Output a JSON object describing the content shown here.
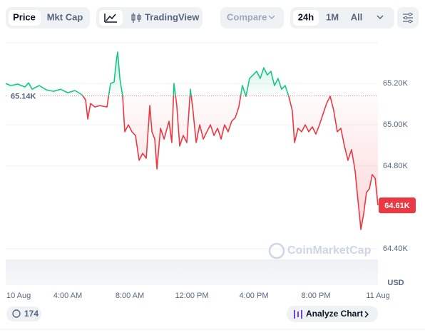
{
  "toolbar": {
    "price": "Price",
    "mkt_cap": "Mkt Cap",
    "tradingview": "TradingView",
    "compare": "Compare",
    "ranges": [
      "24h",
      "1M",
      "All"
    ]
  },
  "chart_data": {
    "type": "line",
    "x": [
      0,
      0.32,
      0.78,
      1.24,
      1.47,
      1.7,
      2.16,
      2.62,
      3.08,
      3.54,
      4.0,
      4.46,
      4.92,
      5.15,
      5.29,
      5.47,
      5.75,
      6.07,
      6.53,
      6.76,
      6.99,
      7.13,
      7.22,
      7.36,
      7.54,
      7.68,
      7.91,
      8.14,
      8.37,
      8.6,
      8.83,
      9.06,
      9.29,
      9.43,
      9.61,
      9.75,
      9.98,
      10.21,
      10.53,
      10.71,
      10.85,
      11.03,
      11.22,
      11.45,
      11.68,
      11.91,
      12.05,
      12.28,
      12.51,
      12.74,
      12.97,
      13.2,
      13.43,
      13.66,
      13.89,
      14.11,
      14.34,
      14.57,
      14.8,
      15.03,
      15.26,
      15.49,
      15.72,
      15.95,
      16.18,
      16.41,
      16.64,
      16.87,
      17.1,
      17.33,
      17.56,
      17.79,
      18.02,
      18.25,
      18.48,
      18.62,
      18.85,
      19.08,
      19.31,
      19.54,
      19.77,
      20.0,
      20.23,
      20.46,
      20.69,
      20.92,
      21.15,
      21.38,
      21.61,
      21.84,
      22.07,
      22.3,
      22.53,
      22.71,
      22.9,
      23.08,
      23.26,
      23.45,
      23.63,
      23.82,
      24.0
    ],
    "series": [
      {
        "name": "Price",
        "color_up": "#16c784",
        "color_down": "#ea3943",
        "values": [
          65200,
          65190,
          65197,
          65183,
          65203,
          65172,
          65190,
          65169,
          65162,
          65172,
          65155,
          65166,
          65145,
          65121,
          65028,
          65103,
          65086,
          65093,
          65086,
          65200,
          65207,
          65310,
          65352,
          65224,
          65138,
          64966,
          65000,
          64966,
          64948,
          64828,
          64862,
          64838,
          65093,
          64966,
          64931,
          64786,
          64983,
          64931,
          65017,
          64914,
          65200,
          65093,
          64897,
          64948,
          64914,
          65172,
          65086,
          64914,
          65000,
          64931,
          64966,
          65000,
          64948,
          64983,
          64931,
          65000,
          64966,
          65017,
          65034,
          65086,
          65190,
          65138,
          65224,
          65241,
          65259,
          65224,
          65276,
          65241,
          65259,
          65190,
          65224,
          65172,
          65190,
          65138,
          65069,
          64914,
          64983,
          64966,
          65000,
          64966,
          64990,
          64955,
          65000,
          65052,
          65103,
          65138,
          65069,
          64966,
          64983,
          64897,
          64828,
          64880,
          64776,
          64638,
          64493,
          64569,
          64672,
          64690,
          64759,
          64741,
          64610
        ]
      }
    ],
    "xlim": [
      0,
      24
    ],
    "xticks": [
      {
        "value": 0,
        "label": "10 Aug"
      },
      {
        "value": 4,
        "label": "4:00 AM"
      },
      {
        "value": 8,
        "label": "8:00 AM"
      },
      {
        "value": 12,
        "label": "12:00 PM"
      },
      {
        "value": 16,
        "label": "4:00 PM"
      },
      {
        "value": 20,
        "label": "8:00 PM"
      },
      {
        "value": 24,
        "label": "11 Aug"
      }
    ],
    "ylim": [
      64224,
      65397
    ],
    "yticks": [
      {
        "value": 64400,
        "label": "64.40K"
      },
      {
        "value": 64800,
        "label": "64.80K"
      },
      {
        "value": 65000,
        "label": "65.00K"
      },
      {
        "value": 65200,
        "label": "65.20K"
      }
    ],
    "baseline": {
      "value": 65140,
      "label": "65.14K"
    },
    "current": {
      "value": 64610,
      "label": "64.61K"
    },
    "y_unit": "USD",
    "watermark": "CoinMarketCap",
    "grid": true
  },
  "footer": {
    "count": "174",
    "analyze": "Analyze Chart"
  }
}
